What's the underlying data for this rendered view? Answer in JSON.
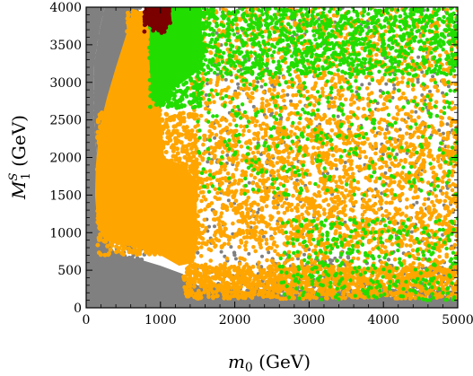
{
  "chart_data": {
    "type": "scatter",
    "title": "",
    "xlabel": {
      "math": "m",
      "sub": "0",
      "unit": " (GeV)"
    },
    "ylabel": {
      "math": "M",
      "sub": "1",
      "sup": "S",
      "unit": " (GeV)"
    },
    "xlim": [
      0,
      5000
    ],
    "ylim": [
      0,
      4000
    ],
    "xticks": [
      "0",
      "1000",
      "2000",
      "3000",
      "4000",
      "5000"
    ],
    "yticks": [
      "0",
      "500",
      "1000",
      "1500",
      "2000",
      "2500",
      "3000",
      "3500",
      "4000"
    ],
    "grid": false,
    "legend": "none",
    "series": [
      {
        "color": "#808080",
        "description": "all points (filled region covering low/mid m0 and low M1 band)"
      },
      {
        "color": "#ffa500",
        "description": "dense column m0 ~ 100-1500 and scattered points across the plane"
      },
      {
        "color": "#22dd00",
        "description": "column m0 ~ 850-1550, M1 ~ 2600-4000 plus scattered points at high m0"
      },
      {
        "color": "#7b0000",
        "description": "small cluster m0 ~ 750-1150, M1 ~ 3700-4000"
      }
    ]
  }
}
